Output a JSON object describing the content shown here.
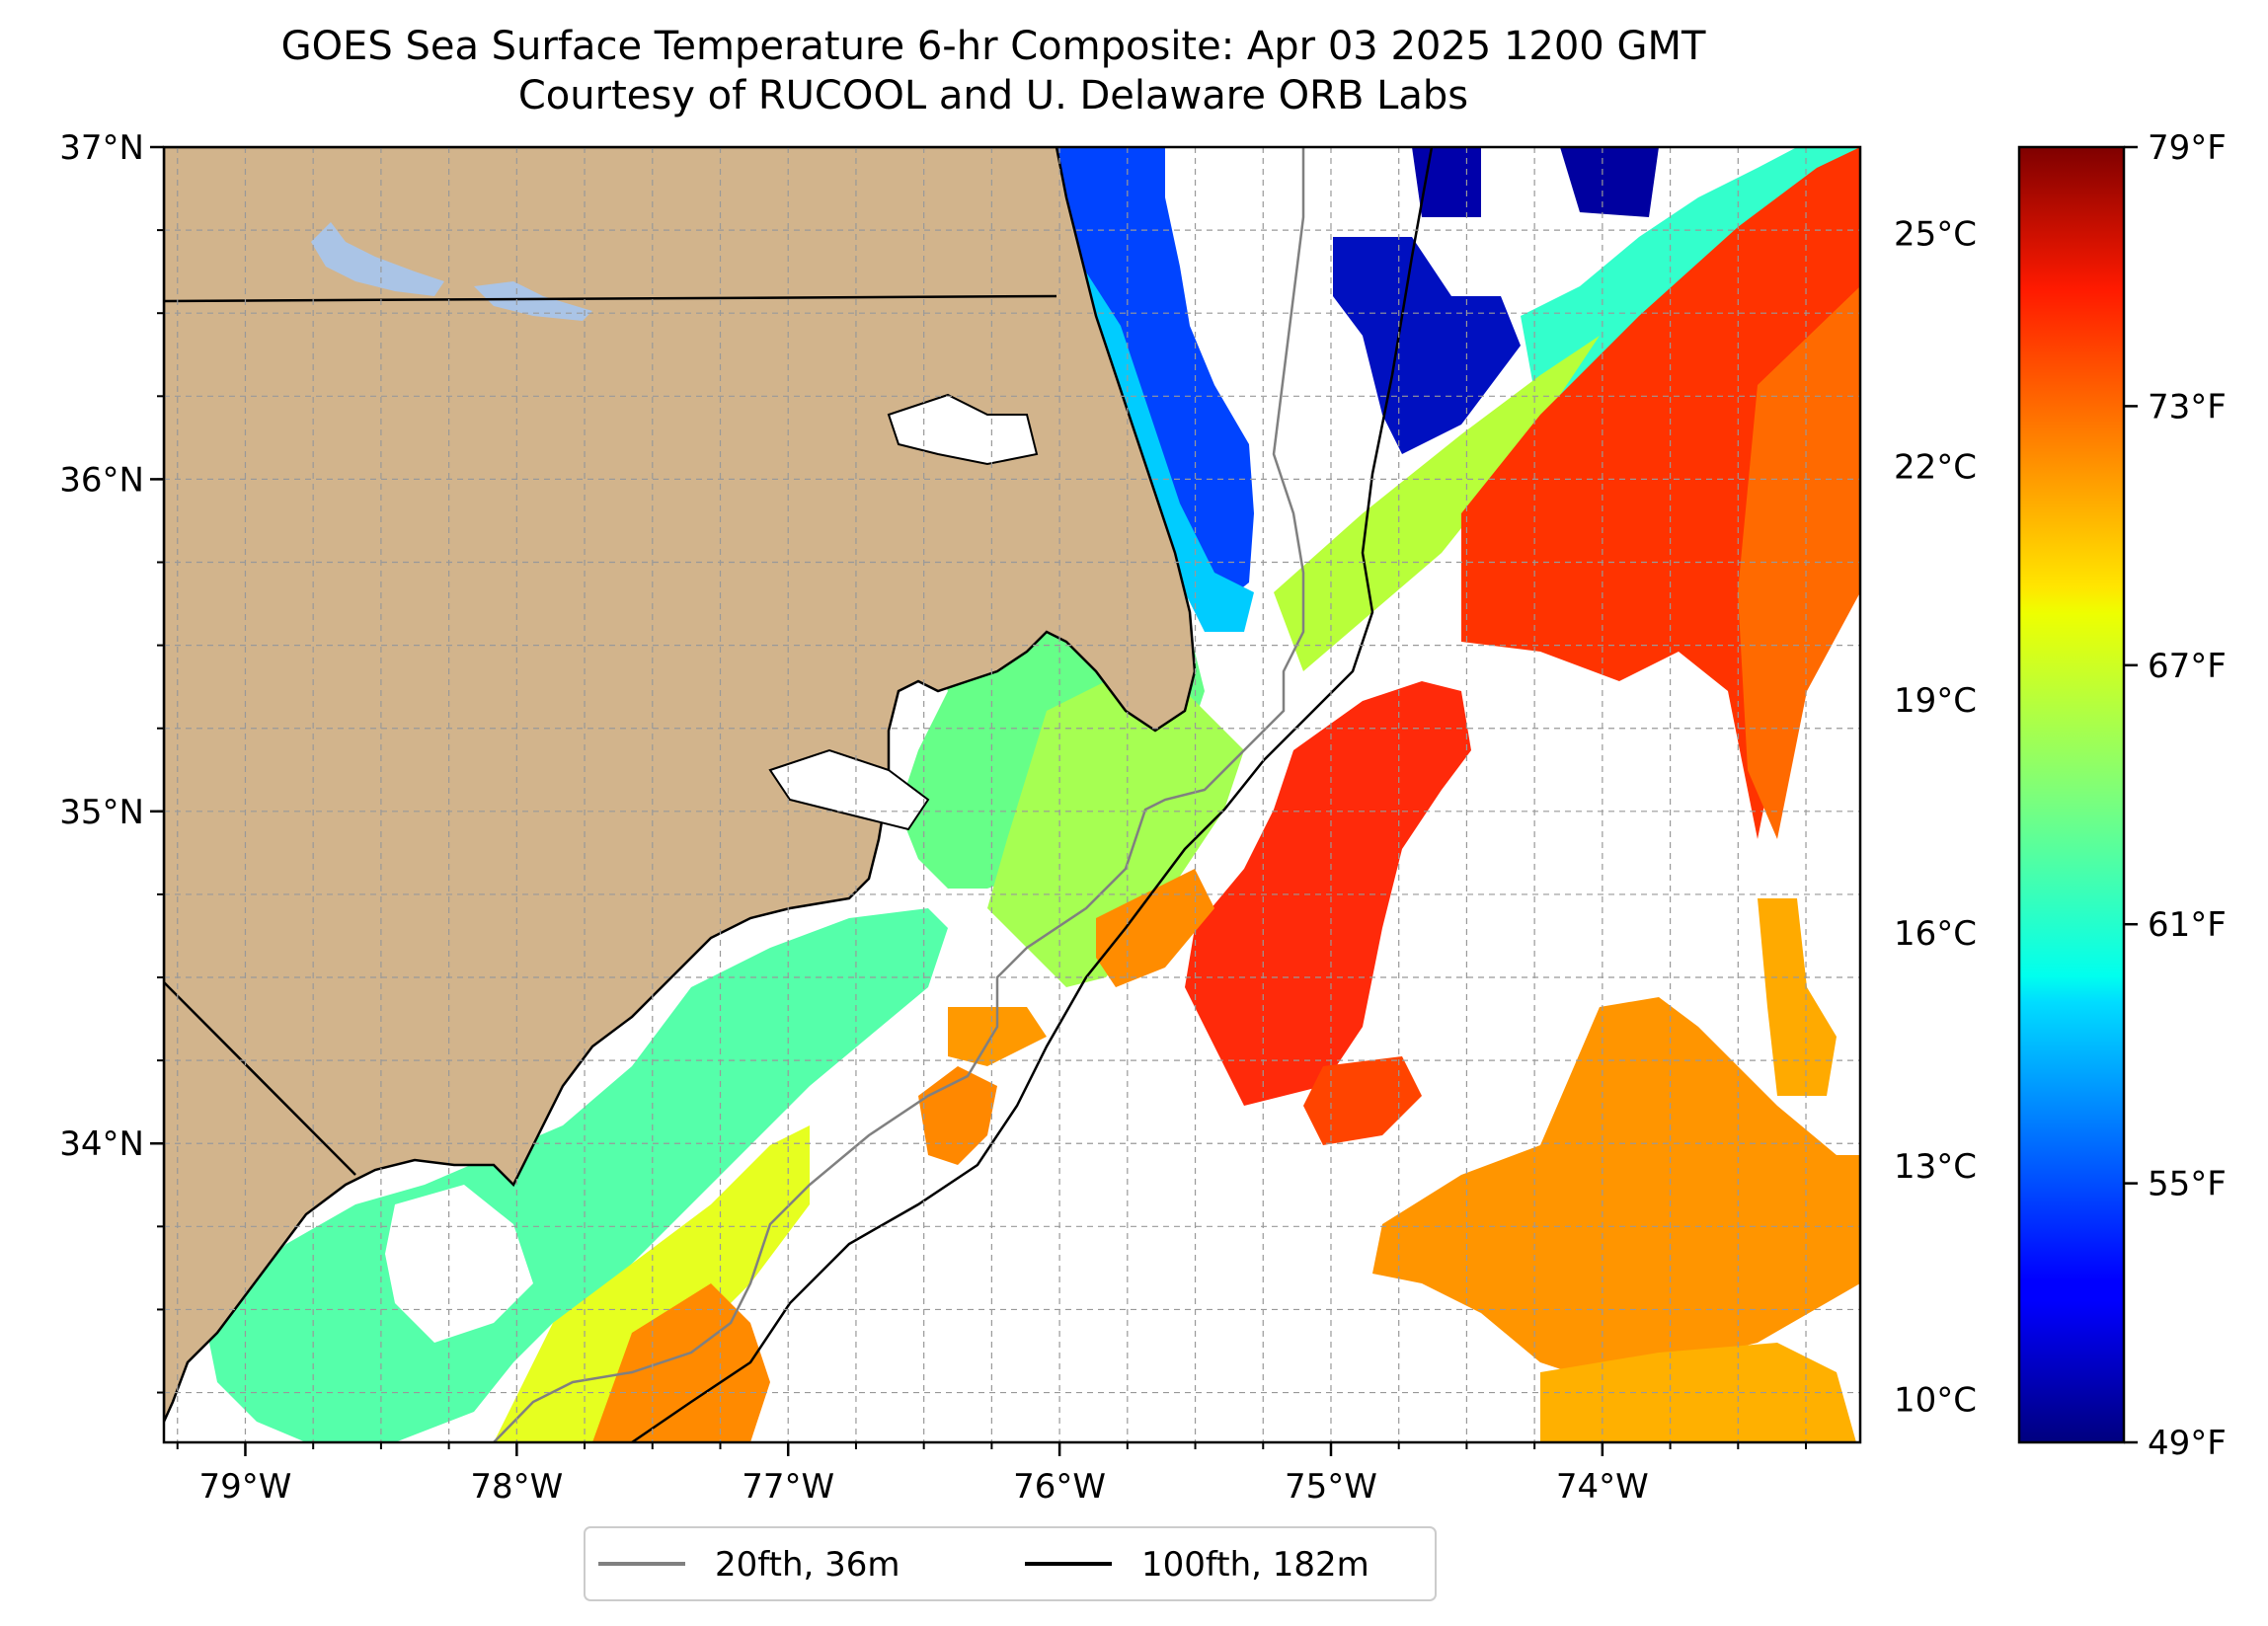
{
  "title": "GOES Sea Surface Temperature 6-hr Composite: Apr 03 2025 1200 GMT",
  "subtitle": "Courtesy of RUCOOL and U. Delaware ORB Labs",
  "map": {
    "lon_range": [
      -79.3,
      -73.05
    ],
    "lat_range": [
      33.1,
      37.0
    ],
    "lon_ticks": [
      -79,
      -78,
      -77,
      -76,
      -75,
      -74
    ],
    "lon_tick_labels": [
      "79°W",
      "78°W",
      "77°W",
      "76°W",
      "75°W",
      "74°W"
    ],
    "lat_ticks": [
      34,
      35,
      36,
      37
    ],
    "lat_tick_labels": [
      "34°N",
      "35°N",
      "36°N",
      "37°N"
    ],
    "grid": true,
    "land_color": "#d2b48c",
    "water_color": "#aac4e6",
    "colormap": "jet"
  },
  "colorbar": {
    "celsius_ticks": [
      10,
      13,
      16,
      19,
      22,
      25
    ],
    "celsius_labels": [
      "10°C",
      "13°C",
      "16°C",
      "19°C",
      "22°C",
      "25°C"
    ],
    "fahrenheit_ticks": [
      49,
      55,
      61,
      67,
      73,
      79
    ],
    "fahrenheit_labels": [
      "49°F",
      "55°F",
      "61°F",
      "67°F",
      "73°F",
      "79°F"
    ],
    "range_f": [
      49,
      79
    ]
  },
  "legend": {
    "location": "below map",
    "items": [
      {
        "label": "20fth, 36m",
        "color": "#808080"
      },
      {
        "label": "100fth, 182m",
        "color": "#000000"
      }
    ]
  }
}
